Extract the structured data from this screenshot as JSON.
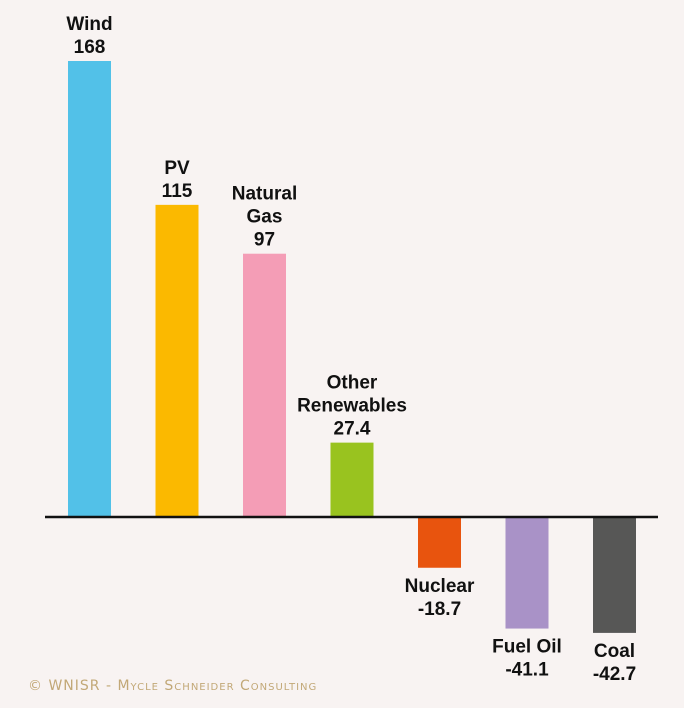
{
  "chart_data": {
    "type": "bar",
    "categories": [
      "Wind",
      "PV",
      "Natural Gas",
      "Other Renewables",
      "Nuclear",
      "Fuel Oil",
      "Coal"
    ],
    "label_lines": [
      [
        "Wind"
      ],
      [
        "PV"
      ],
      [
        "Natural",
        "Gas"
      ],
      [
        "Other",
        "Renewables"
      ],
      [
        "Nuclear"
      ],
      [
        "Fuel Oil"
      ],
      [
        "Coal"
      ]
    ],
    "values": [
      168,
      115,
      97,
      27.4,
      -18.7,
      -41.1,
      -42.7
    ],
    "value_labels": [
      "168",
      "115",
      "97",
      "27.4",
      "-18.7",
      "-41.1",
      "-42.7"
    ],
    "colors": [
      "#52c1e8",
      "#fbb900",
      "#f49db6",
      "#99c31f",
      "#e8540e",
      "#a992c7",
      "#575756"
    ],
    "ylim": [
      -42.7,
      168
    ],
    "grid": false,
    "legend": "none"
  },
  "footer": "© WNISR - Mycle Schneider Consulting"
}
